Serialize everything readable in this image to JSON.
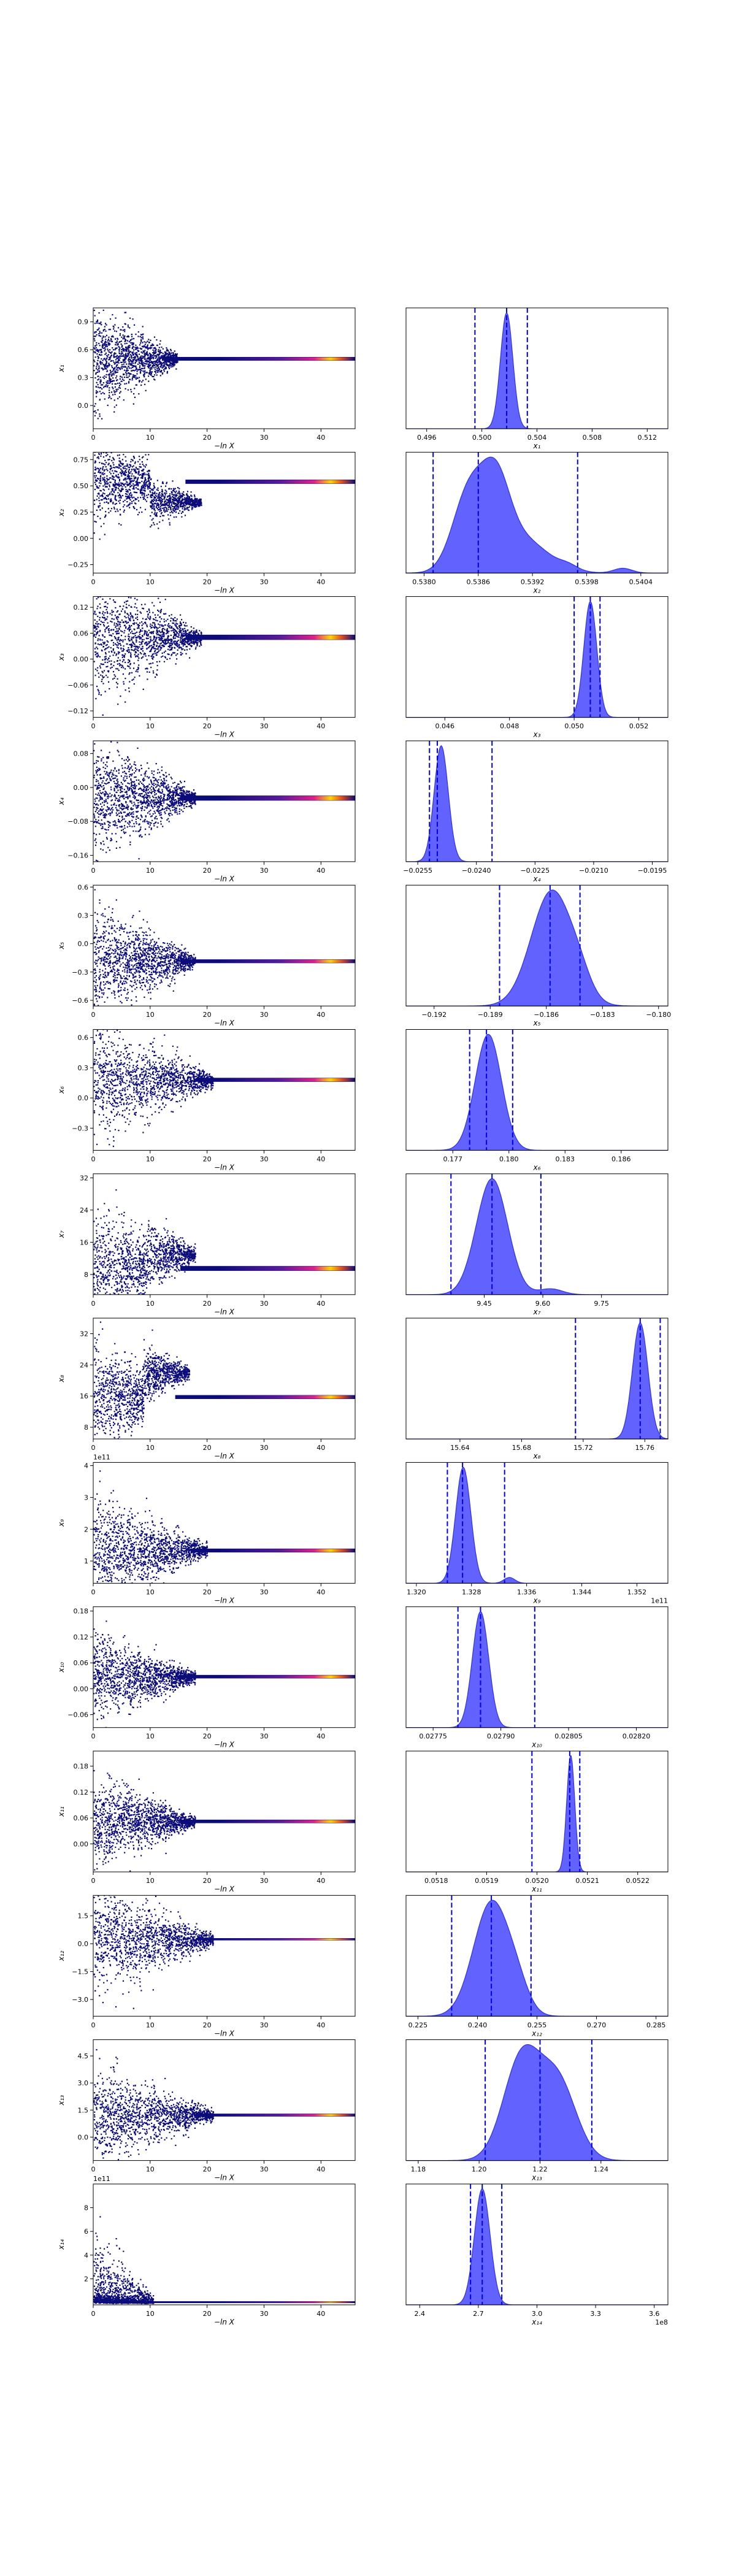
{
  "colors": {
    "trace_point": "#0b0b7a",
    "trace_band_start": "#5a1a9a",
    "trace_band_hot": "#ffd400",
    "kde_fill": "#4040ff",
    "kde_line": "#3030e8",
    "quantile_line": "#0000ee",
    "frame": "#000000"
  },
  "chart_data": [
    {
      "type": "scatter",
      "title": "",
      "xlabel": "−ln X",
      "ylabel": "x₁",
      "xlim": [
        0,
        46
      ],
      "ylim": [
        -0.25,
        1.05
      ],
      "xticks": [
        "0",
        "10",
        "20",
        "30",
        "40"
      ],
      "xtick_values": [
        0,
        10,
        20,
        30,
        40
      ],
      "yticks": [
        "0.0",
        "0.3",
        "0.6",
        "0.9"
      ],
      "ytick_values": [
        0.0,
        0.3,
        0.6,
        0.9
      ],
      "offset_text": "",
      "trace": {
        "center": 0.502,
        "spread": 0.28,
        "converge_at": 14,
        "band": 0.02
      }
    },
    {
      "type": "area",
      "title": "",
      "xlabel": "x₁",
      "ylabel": "",
      "xlim": [
        0.4945,
        0.5135
      ],
      "xticks": [
        "0.496",
        "0.500",
        "0.504",
        "0.508",
        "0.512"
      ],
      "xtick_values": [
        0.496,
        0.5,
        0.504,
        0.508,
        0.512
      ],
      "offset_text": "",
      "quantiles": [
        0.4995,
        0.5018,
        0.5033
      ],
      "kde": [
        {
          "mu": 0.5018,
          "sigma": 0.00045,
          "w": 1.0
        }
      ]
    },
    {
      "type": "scatter",
      "title": "",
      "xlabel": "−ln X",
      "ylabel": "x₂",
      "xlim": [
        0,
        46
      ],
      "ylim": [
        -0.33,
        0.82
      ],
      "xticks": [
        "0",
        "10",
        "20",
        "30",
        "40"
      ],
      "xtick_values": [
        0,
        10,
        20,
        30,
        40
      ],
      "yticks": [
        "−0.25",
        "0.00",
        "0.25",
        "0.50",
        "0.75"
      ],
      "ytick_values": [
        -0.25,
        0.0,
        0.25,
        0.5,
        0.75
      ],
      "offset_text": "",
      "trace": {
        "center": 0.539,
        "spread": 0.2,
        "converge_at": 18,
        "band": 0.02,
        "mid_level": 0.35
      }
    },
    {
      "type": "area",
      "title": "",
      "xlabel": "x₂",
      "ylabel": "",
      "xlim": [
        0.5378,
        0.5407
      ],
      "xticks": [
        "0.5380",
        "0.5386",
        "0.5392",
        "0.5398",
        "0.5404"
      ],
      "xtick_values": [
        0.538,
        0.5386,
        0.5392,
        0.5398,
        0.5404
      ],
      "offset_text": "",
      "quantiles": [
        0.5381,
        0.5386,
        0.5397
      ],
      "kde": [
        {
          "mu": 0.5385,
          "sigma": 0.00018,
          "w": 1.0
        },
        {
          "mu": 0.5388,
          "sigma": 0.00015,
          "w": 0.85
        },
        {
          "mu": 0.53905,
          "sigma": 0.0003,
          "w": 0.45
        },
        {
          "mu": 0.5396,
          "sigma": 0.0001,
          "w": 0.05
        },
        {
          "mu": 0.5402,
          "sigma": 0.0001,
          "w": 0.06
        }
      ]
    },
    {
      "type": "scatter",
      "title": "",
      "xlabel": "−ln X",
      "ylabel": "x₃",
      "xlim": [
        0,
        46
      ],
      "ylim": [
        -0.135,
        0.145
      ],
      "xticks": [
        "0",
        "10",
        "20",
        "30",
        "40"
      ],
      "xtick_values": [
        0,
        10,
        20,
        30,
        40
      ],
      "yticks": [
        "−0.12",
        "−0.06",
        "0.00",
        "0.06",
        "0.12"
      ],
      "ytick_values": [
        -0.12,
        -0.06,
        0.0,
        0.06,
        0.12
      ],
      "offset_text": "",
      "trace": {
        "center": 0.0505,
        "spread": 0.07,
        "converge_at": 18,
        "band": 0.006
      }
    },
    {
      "type": "area",
      "title": "",
      "xlabel": "x₃",
      "ylabel": "",
      "xlim": [
        0.0448,
        0.0529
      ],
      "xticks": [
        "0.046",
        "0.048",
        "0.050",
        "0.052"
      ],
      "xtick_values": [
        0.046,
        0.048,
        0.05,
        0.052
      ],
      "offset_text": "",
      "quantiles": [
        0.05,
        0.0505,
        0.0508
      ],
      "kde": [
        {
          "mu": 0.0505,
          "sigma": 0.0002,
          "w": 1.0
        }
      ]
    },
    {
      "type": "scatter",
      "title": "",
      "xlabel": "−ln X",
      "ylabel": "x₄",
      "xlim": [
        0,
        46
      ],
      "ylim": [
        -0.175,
        0.11
      ],
      "xticks": [
        "0",
        "10",
        "20",
        "30",
        "40"
      ],
      "xtick_values": [
        0,
        10,
        20,
        30,
        40
      ],
      "yticks": [
        "−0.16",
        "−0.08",
        "0.00",
        "0.08"
      ],
      "ytick_values": [
        -0.16,
        -0.08,
        0.0,
        0.08
      ],
      "offset_text": "",
      "trace": {
        "center": -0.025,
        "spread": 0.07,
        "converge_at": 17,
        "band": 0.006
      }
    },
    {
      "type": "area",
      "title": "",
      "xlabel": "x₄",
      "ylabel": "",
      "xlim": [
        -0.0258,
        -0.0191
      ],
      "xticks": [
        "−0.0255",
        "−0.0240",
        "−0.0225",
        "−0.0210",
        "−0.0195"
      ],
      "xtick_values": [
        -0.0255,
        -0.024,
        -0.0225,
        -0.021,
        -0.0195
      ],
      "offset_text": "",
      "quantiles": [
        -0.0252,
        -0.025,
        -0.0236
      ],
      "kde": [
        {
          "mu": -0.0249,
          "sigma": 0.00018,
          "w": 1.0
        }
      ]
    },
    {
      "type": "scatter",
      "title": "",
      "xlabel": "−ln X",
      "ylabel": "x₅",
      "xlim": [
        0,
        46
      ],
      "ylim": [
        -0.66,
        0.62
      ],
      "xticks": [
        "0",
        "10",
        "20",
        "30",
        "40"
      ],
      "xtick_values": [
        0,
        10,
        20,
        30,
        40
      ],
      "yticks": [
        "−0.6",
        "−0.3",
        "0.0",
        "0.3",
        "0.6"
      ],
      "ytick_values": [
        -0.6,
        -0.3,
        0.0,
        0.3,
        0.6
      ],
      "offset_text": "",
      "trace": {
        "center": -0.186,
        "spread": 0.3,
        "converge_at": 17,
        "band": 0.02
      }
    },
    {
      "type": "area",
      "title": "",
      "xlabel": "x₅",
      "ylabel": "",
      "xlim": [
        -0.1935,
        -0.1795
      ],
      "xticks": [
        "−0.192",
        "−0.189",
        "−0.186",
        "−0.183",
        "−0.180"
      ],
      "xtick_values": [
        -0.192,
        -0.189,
        -0.186,
        -0.183,
        -0.18
      ],
      "offset_text": "",
      "quantiles": [
        -0.1885,
        -0.1858,
        -0.1842
      ],
      "kde": [
        {
          "mu": -0.1857,
          "sigma": 0.0011,
          "w": 1.0
        },
        {
          "mu": -0.1842,
          "sigma": 0.0006,
          "w": 0.12
        }
      ]
    },
    {
      "type": "scatter",
      "title": "",
      "xlabel": "−ln X",
      "ylabel": "x₆",
      "xlim": [
        0,
        46
      ],
      "ylim": [
        -0.52,
        0.68
      ],
      "xticks": [
        "0",
        "10",
        "20",
        "30",
        "40"
      ],
      "xtick_values": [
        0,
        10,
        20,
        30,
        40
      ],
      "yticks": [
        "−0.3",
        "0.0",
        "0.3",
        "0.6"
      ],
      "ytick_values": [
        -0.3,
        0.0,
        0.3,
        0.6
      ],
      "offset_text": "",
      "trace": {
        "center": 0.18,
        "spread": 0.28,
        "converge_at": 20,
        "band": 0.02
      }
    },
    {
      "type": "area",
      "title": "",
      "xlabel": "x₆",
      "ylabel": "",
      "xlim": [
        0.1745,
        0.1885
      ],
      "xticks": [
        "0.177",
        "0.180",
        "0.183",
        "0.186"
      ],
      "xtick_values": [
        0.177,
        0.18,
        0.183,
        0.186
      ],
      "offset_text": "",
      "quantiles": [
        0.1779,
        0.1788,
        0.1802
      ],
      "kde": [
        {
          "mu": 0.1789,
          "sigma": 0.0007,
          "w": 1.0
        }
      ]
    },
    {
      "type": "scatter",
      "title": "",
      "xlabel": "−ln X",
      "ylabel": "x₇",
      "xlim": [
        0,
        46
      ],
      "ylim": [
        3,
        33
      ],
      "xticks": [
        "0",
        "10",
        "20",
        "30",
        "40"
      ],
      "xtick_values": [
        0,
        10,
        20,
        30,
        40
      ],
      "yticks": [
        "8",
        "16",
        "24",
        "32"
      ],
      "ytick_values": [
        8,
        16,
        24,
        32
      ],
      "offset_text": "",
      "trace": {
        "center": 9.5,
        "spread": 8,
        "converge_at": 17,
        "band": 0.6,
        "mid_level": 13
      }
    },
    {
      "type": "area",
      "title": "",
      "xlabel": "x₇",
      "ylabel": "",
      "xlim": [
        9.25,
        9.92
      ],
      "xticks": [
        "9.45",
        "9.60",
        "9.75"
      ],
      "xtick_values": [
        9.45,
        9.6,
        9.75
      ],
      "offset_text": "",
      "quantiles": [
        9.365,
        9.47,
        9.595
      ],
      "kde": [
        {
          "mu": 9.47,
          "sigma": 0.04,
          "w": 1.0
        },
        {
          "mu": 9.62,
          "sigma": 0.03,
          "w": 0.05
        }
      ]
    },
    {
      "type": "scatter",
      "title": "",
      "xlabel": "−ln X",
      "ylabel": "x₈",
      "xlim": [
        0,
        46
      ],
      "ylim": [
        5,
        36
      ],
      "xticks": [
        "0",
        "10",
        "20",
        "30",
        "40"
      ],
      "xtick_values": [
        0,
        10,
        20,
        30,
        40
      ],
      "yticks": [
        "8",
        "16",
        "24",
        "32"
      ],
      "ytick_values": [
        8,
        16,
        24,
        32
      ],
      "offset_text": "",
      "trace": {
        "center": 15.75,
        "spread": 7,
        "converge_at": 16,
        "band": 0.5,
        "mid_level": 22
      }
    },
    {
      "type": "area",
      "title": "",
      "xlabel": "x₈",
      "ylabel": "",
      "xlim": [
        15.605,
        15.775
      ],
      "xticks": [
        "15.64",
        "15.68",
        "15.72",
        "15.76"
      ],
      "xtick_values": [
        15.64,
        15.68,
        15.72,
        15.76
      ],
      "offset_text": "",
      "quantiles": [
        15.715,
        15.757,
        15.77
      ],
      "kde": [
        {
          "mu": 15.757,
          "sigma": 0.005,
          "w": 1.0
        }
      ]
    },
    {
      "type": "scatter",
      "title": "",
      "xlabel": "−ln X",
      "ylabel": "x₉",
      "xlim": [
        0,
        46
      ],
      "ylim": [
        0.3,
        4.1
      ],
      "xticks": [
        "0",
        "10",
        "20",
        "30",
        "40"
      ],
      "xtick_values": [
        0,
        10,
        20,
        30,
        40
      ],
      "yticks": [
        "1",
        "2",
        "3",
        "4"
      ],
      "ytick_values": [
        1,
        2,
        3,
        4
      ],
      "offset_text": "1e11",
      "trace": {
        "center": 1.33,
        "spread": 0.9,
        "converge_at": 19,
        "band": 0.06
      }
    },
    {
      "type": "area",
      "title": "",
      "xlabel": "x₉",
      "ylabel": "",
      "xlim": [
        1.3185,
        1.3565
      ],
      "xticks": [
        "1.320",
        "1.328",
        "1.336",
        "1.344",
        "1.352"
      ],
      "xtick_values": [
        1.32,
        1.328,
        1.336,
        1.344,
        1.352
      ],
      "offset_text": "1e11",
      "quantiles": [
        1.3245,
        1.3267,
        1.3328
      ],
      "kde": [
        {
          "mu": 1.3268,
          "sigma": 0.0011,
          "w": 1.0
        },
        {
          "mu": 1.3335,
          "sigma": 0.0008,
          "w": 0.05
        }
      ]
    },
    {
      "type": "scatter",
      "title": "",
      "xlabel": "−ln X",
      "ylabel": "x₁₀",
      "xlim": [
        0,
        46
      ],
      "ylim": [
        -0.09,
        0.19
      ],
      "xticks": [
        "0",
        "10",
        "20",
        "30",
        "40"
      ],
      "xtick_values": [
        0,
        10,
        20,
        30,
        40
      ],
      "yticks": [
        "−0.06",
        "0.00",
        "0.06",
        "0.12",
        "0.18"
      ],
      "ytick_values": [
        -0.06,
        0.0,
        0.06,
        0.12,
        0.18
      ],
      "offset_text": "",
      "trace": {
        "center": 0.028,
        "spread": 0.05,
        "converge_at": 17,
        "band": 0.004
      }
    },
    {
      "type": "area",
      "title": "",
      "xlabel": "x₁₀",
      "ylabel": "",
      "xlim": [
        0.02769,
        0.02827
      ],
      "xticks": [
        "0.02775",
        "0.02790",
        "0.02805",
        "0.02820"
      ],
      "xtick_values": [
        0.02775,
        0.0279,
        0.02805,
        0.0282
      ],
      "offset_text": "",
      "quantiles": [
        0.027805,
        0.027855,
        0.027975
      ],
      "kde": [
        {
          "mu": 0.027855,
          "sigma": 1.8e-05,
          "w": 1.0
        }
      ]
    },
    {
      "type": "scatter",
      "title": "",
      "xlabel": "−ln X",
      "ylabel": "x₁₁",
      "xlim": [
        0,
        46
      ],
      "ylim": [
        -0.065,
        0.215
      ],
      "xticks": [
        "0",
        "10",
        "20",
        "30",
        "40"
      ],
      "xtick_values": [
        0,
        10,
        20,
        30,
        40
      ],
      "yticks": [
        "0.00",
        "0.06",
        "0.12",
        "0.18"
      ],
      "ytick_values": [
        0.0,
        0.06,
        0.12,
        0.18
      ],
      "offset_text": "",
      "trace": {
        "center": 0.052,
        "spread": 0.05,
        "converge_at": 17,
        "band": 0.004
      }
    },
    {
      "type": "area",
      "title": "",
      "xlabel": "x₁₁",
      "ylabel": "",
      "xlim": [
        0.05174,
        0.05226
      ],
      "xticks": [
        "0.0518",
        "0.0519",
        "0.0520",
        "0.0521",
        "0.0522"
      ],
      "xtick_values": [
        0.0518,
        0.0519,
        0.052,
        0.0521,
        0.0522
      ],
      "offset_text": "",
      "quantiles": [
        0.05199,
        0.052065,
        0.052085
      ],
      "kde": [
        {
          "mu": 0.052067,
          "sigma": 8e-06,
          "w": 1.0
        }
      ]
    },
    {
      "type": "scatter",
      "title": "",
      "xlabel": "−ln X",
      "ylabel": "x₁₂",
      "xlim": [
        0,
        46
      ],
      "ylim": [
        -3.9,
        2.6
      ],
      "xticks": [
        "0",
        "10",
        "20",
        "30",
        "40"
      ],
      "xtick_values": [
        0,
        10,
        20,
        30,
        40
      ],
      "yticks": [
        "−3.0",
        "−1.5",
        "0.0",
        "1.5"
      ],
      "ytick_values": [
        -3.0,
        -1.5,
        0.0,
        1.5
      ],
      "offset_text": "",
      "trace": {
        "center": 0.24,
        "spread": 1.5,
        "converge_at": 20,
        "band": 0.06
      }
    },
    {
      "type": "area",
      "title": "",
      "xlabel": "x₁₂",
      "ylabel": "",
      "xlim": [
        0.222,
        0.288
      ],
      "xticks": [
        "0.225",
        "0.240",
        "0.255",
        "0.270",
        "0.285"
      ],
      "xtick_values": [
        0.225,
        0.24,
        0.255,
        0.27,
        0.285
      ],
      "offset_text": "",
      "quantiles": [
        0.2335,
        0.2435,
        0.2535
      ],
      "kde": [
        {
          "mu": 0.2435,
          "sigma": 0.0045,
          "w": 1.0
        },
        {
          "mu": 0.25,
          "sigma": 0.003,
          "w": 0.18
        }
      ]
    },
    {
      "type": "scatter",
      "title": "",
      "xlabel": "−ln X",
      "ylabel": "x₁₃",
      "xlim": [
        0,
        46
      ],
      "ylim": [
        -1.3,
        5.4
      ],
      "xticks": [
        "0",
        "10",
        "20",
        "30",
        "40"
      ],
      "xtick_values": [
        0,
        10,
        20,
        30,
        40
      ],
      "yticks": [
        "0.0",
        "1.5",
        "3.0",
        "4.5"
      ],
      "ytick_values": [
        0.0,
        1.5,
        3.0,
        4.5
      ],
      "offset_text": "",
      "trace": {
        "center": 1.22,
        "spread": 1.3,
        "converge_at": 20,
        "band": 0.08
      }
    },
    {
      "type": "area",
      "title": "",
      "xlabel": "x₁₃",
      "ylabel": "",
      "xlim": [
        1.176,
        1.262
      ],
      "xticks": [
        "1.18",
        "1.20",
        "1.22",
        "1.24"
      ],
      "xtick_values": [
        1.18,
        1.2,
        1.22,
        1.24
      ],
      "offset_text": "",
      "quantiles": [
        1.202,
        1.22,
        1.237
      ],
      "kde": [
        {
          "mu": 1.214,
          "sigma": 0.006,
          "w": 1.0
        },
        {
          "mu": 1.226,
          "sigma": 0.006,
          "w": 0.75
        }
      ]
    },
    {
      "type": "scatter",
      "title": "",
      "xlabel": "−ln X",
      "ylabel": "x₁₄",
      "xlim": [
        0,
        46
      ],
      "ylim": [
        -0.2,
        10
      ],
      "xticks": [
        "0",
        "10",
        "20",
        "30",
        "40"
      ],
      "xtick_values": [
        0,
        10,
        20,
        30,
        40
      ],
      "yticks": [
        "2",
        "4",
        "6",
        "8"
      ],
      "ytick_values": [
        2,
        4,
        6,
        8
      ],
      "offset_text": "1e11",
      "trace": {
        "center": 0.027,
        "spread": 1.5,
        "converge_at": 10,
        "band": 0.03,
        "skewed": true
      }
    },
    {
      "type": "area",
      "title": "",
      "xlabel": "x₁₄",
      "ylabel": "",
      "xlim": [
        2.33,
        3.67
      ],
      "xticks": [
        "2.4",
        "2.7",
        "3.0",
        "3.3",
        "3.6"
      ],
      "xtick_values": [
        2.4,
        2.7,
        3.0,
        3.3,
        3.6
      ],
      "offset_text": "1e8",
      "quantiles": [
        2.66,
        2.72,
        2.82
      ],
      "kde": [
        {
          "mu": 2.72,
          "sigma": 0.04,
          "w": 1.0
        }
      ]
    }
  ]
}
